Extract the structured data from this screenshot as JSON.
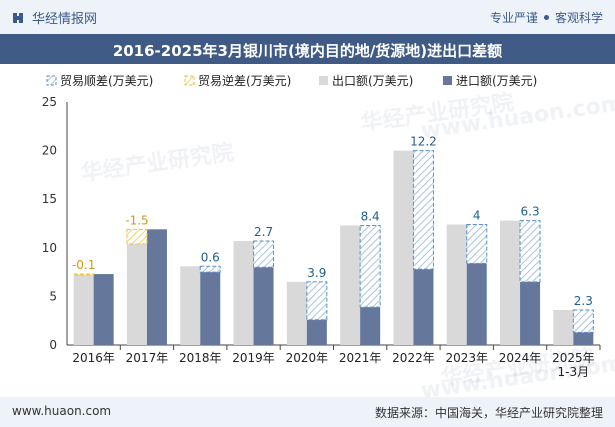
{
  "header": {
    "brand": "华经情报网",
    "tagline_left": "专业严谨",
    "tagline_right": "客观科学"
  },
  "chart_title": "2016-2025年3月银川市(境内目的地/货源地)进出口差额",
  "footer": {
    "site": "www.huaon.com",
    "source": "数据来源：中国海关，华经产业研究院整理"
  },
  "watermarks": [
    "华经产业研究院",
    "www.huaon.com",
    "华经产业研究院",
    "www.huaon.com",
    "华经产业研究院"
  ],
  "colors": {
    "export": "#d9d9d9",
    "import": "#65789c",
    "surplus_border": "#5b8fc7",
    "deficit_border": "#f2c037",
    "label": "#1f5f8b",
    "title_bar": "#3f5a85"
  },
  "chart_data": {
    "type": "bar",
    "categories": [
      "2016年",
      "2017年",
      "2018年",
      "2019年",
      "2020年",
      "2021年",
      "2022年",
      "2023年",
      "2024年",
      "2025年\n1-3月"
    ],
    "series": [
      {
        "name": "出口额(万美元)",
        "values": [
          7.2,
          10.4,
          8.1,
          10.7,
          6.5,
          12.3,
          20.0,
          12.4,
          12.8,
          3.6
        ]
      },
      {
        "name": "进口额(万美元)",
        "values": [
          7.3,
          11.9,
          7.5,
          8.0,
          2.6,
          3.9,
          7.8,
          8.4,
          6.5,
          1.3
        ]
      }
    ],
    "balance": [
      -0.1,
      -1.5,
      0.6,
      2.7,
      3.9,
      8.4,
      12.2,
      4,
      6.3,
      2.3
    ],
    "balance_labels": [
      "-0.1",
      "-1.5",
      "0.6",
      "2.7",
      "3.9",
      "8.4",
      "12.2",
      "4",
      "6.3",
      "2.3"
    ],
    "legend": [
      "贸易顺差(万美元)",
      "贸易逆差(万美元)",
      "出口额(万美元)",
      "进口额(万美元)"
    ],
    "legend_position": "top-left",
    "ylim": [
      0,
      25
    ],
    "yticks": [
      "0",
      "5",
      "10",
      "15",
      "20",
      "25"
    ],
    "grid": false
  }
}
